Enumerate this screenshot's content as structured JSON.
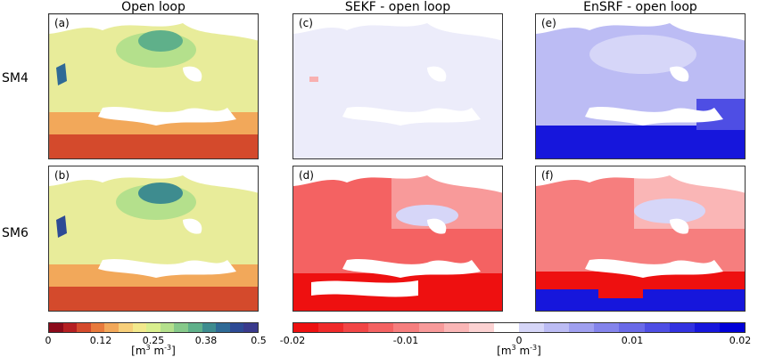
{
  "columns": [
    "Open loop",
    "SEKF - open loop",
    "EnSRF - open loop"
  ],
  "rows": [
    "SM4",
    "SM6"
  ],
  "panels": [
    "(a)",
    "(b)",
    "(c)",
    "(d)",
    "(e)",
    "(f)"
  ],
  "colorbar_left": {
    "ticks": [
      "0",
      "0.12",
      "0.25",
      "0.38",
      "0.5"
    ],
    "unit_base": "[m",
    "unit_exp1": "3",
    "unit_mid": " m",
    "unit_exp2": "-3",
    "unit_end": "]",
    "colors": [
      "#8b0a1a",
      "#b51f22",
      "#d44a2c",
      "#e87a3c",
      "#f2a85a",
      "#f7cf7a",
      "#f2e98c",
      "#d9ef8e",
      "#b4e08c",
      "#86c98a",
      "#5fb08a",
      "#3e8c8f",
      "#2f6a96",
      "#2d4a95",
      "#3a3a8c"
    ]
  },
  "colorbar_right": {
    "ticks": [
      "-0.02",
      "-0.01",
      "0",
      "0.01",
      "0.02"
    ],
    "unit_base": "[m",
    "unit_exp1": "3",
    "unit_mid": " m",
    "unit_exp2": "-3",
    "unit_end": "]",
    "colors": [
      "#ee1010",
      "#f02a2a",
      "#f24646",
      "#f46262",
      "#f67e7e",
      "#f89a9a",
      "#fab6b6",
      "#fcd2d2",
      "#ffffff",
      "#d6d6f8",
      "#bcbcf4",
      "#a0a0f0",
      "#8484ec",
      "#6a6ae8",
      "#4e4ee4",
      "#3232e0",
      "#1616dc",
      "#0000d8"
    ]
  }
}
